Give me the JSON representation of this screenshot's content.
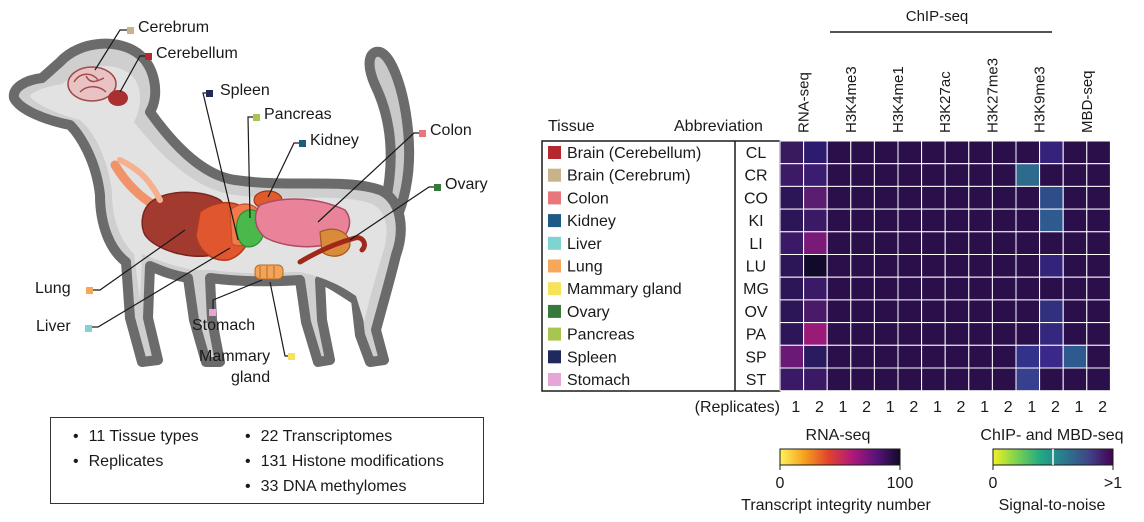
{
  "organ_labels": [
    {
      "key": "cerebrum",
      "text": "Cerebrum",
      "color": "#c8b48a"
    },
    {
      "key": "cerebellum",
      "text": "Cerebellum",
      "color": "#b5282d"
    },
    {
      "key": "spleen",
      "text": "Spleen",
      "color": "#1f2a5c"
    },
    {
      "key": "pancreas",
      "text": "Pancreas",
      "color": "#a8c64f"
    },
    {
      "key": "kidney",
      "text": "Kidney",
      "color": "#1c5b86"
    },
    {
      "key": "colon",
      "text": "Colon",
      "color": "#e9767b"
    },
    {
      "key": "ovary",
      "text": "Ovary",
      "color": "#357a3a"
    },
    {
      "key": "lung",
      "text": "Lung",
      "color": "#f5a85a"
    },
    {
      "key": "liver",
      "text": "Liver",
      "color": "#7fd3d0"
    },
    {
      "key": "stomach",
      "text": "Stomach",
      "color": "#e7a4d8"
    },
    {
      "key": "mammary",
      "text": "Mammary\ngland",
      "color": "#f6e35a"
    }
  ],
  "summary": {
    "left": [
      "11 Tissue types",
      "Replicates"
    ],
    "right": [
      "22 Transcriptomes",
      "131 Histone modifications",
      "33 DNA methylomes"
    ]
  },
  "heatmap": {
    "group_header": "ChIP-seq",
    "col_tissue": "Tissue",
    "col_abbrev": "Abbreviation",
    "assays": [
      "RNA-seq",
      "H3K4me3",
      "H3K4me1",
      "H3K27ac",
      "H3K27me3",
      "H3K9me3",
      "MBD-seq"
    ],
    "replicates_label": "(Replicates)",
    "replicates": [
      "1",
      "2",
      "1",
      "2",
      "1",
      "2",
      "1",
      "2",
      "1",
      "2",
      "1",
      "2",
      "1",
      "2"
    ],
    "rows": [
      {
        "tissue": "Brain (Cerebellum)",
        "abbr": "CL",
        "color": "#b5282d"
      },
      {
        "tissue": "Brain (Cerebrum)",
        "abbr": "CR",
        "color": "#c8b48a"
      },
      {
        "tissue": "Colon",
        "abbr": "CO",
        "color": "#e9767b"
      },
      {
        "tissue": "Kidney",
        "abbr": "KI",
        "color": "#1c5b86"
      },
      {
        "tissue": "Liver",
        "abbr": "LI",
        "color": "#7fd3d0"
      },
      {
        "tissue": "Lung",
        "abbr": "LU",
        "color": "#f5a85a"
      },
      {
        "tissue": "Mammary gland",
        "abbr": "MG",
        "color": "#f6e35a"
      },
      {
        "tissue": "Ovary",
        "abbr": "OV",
        "color": "#357a3a"
      },
      {
        "tissue": "Pancreas",
        "abbr": "PA",
        "color": "#a8c64f"
      },
      {
        "tissue": "Spleen",
        "abbr": "SP",
        "color": "#1f2a5c"
      },
      {
        "tissue": "Stomach",
        "abbr": "ST",
        "color": "#e7a4d8"
      }
    ],
    "cell_colors": [
      [
        "#3a1a5e",
        "#2c1b6e",
        "#2a0f4a",
        "#2a0f4a",
        "#2a0f4a",
        "#2a0f4a",
        "#2a0f4a",
        "#2a0f4a",
        "#2a0f4a",
        "#2a0f4a",
        "#2a0f4a",
        "#35227a",
        "#2a0f4a",
        "#2a0f4a"
      ],
      [
        "#3d1a66",
        "#3a1c70",
        "#2a0f4a",
        "#2a0f4a",
        "#2a0f4a",
        "#2a0f4a",
        "#2a0f4a",
        "#2a0f4a",
        "#2a0f4a",
        "#2a0f4a",
        "#2e6a8e",
        "#2a0f4a",
        "#2a0f4a",
        "#2a0f4a"
      ],
      [
        "#2c1658",
        "#5a1d72",
        "#2a0f4a",
        "#2a0f4a",
        "#2a0f4a",
        "#2a0f4a",
        "#2a0f4a",
        "#2a0f4a",
        "#2a0f4a",
        "#2a0f4a",
        "#2a0f4a",
        "#2e4e8a",
        "#2a0f4a",
        "#2a0f4a"
      ],
      [
        "#2c1658",
        "#3a1a66",
        "#2a0f4a",
        "#2a0f4a",
        "#2a0f4a",
        "#2a0f4a",
        "#2a0f4a",
        "#2a0f4a",
        "#2a0f4a",
        "#2a0f4a",
        "#2a0f4a",
        "#2e5a90",
        "#2a0f4a",
        "#2a0f4a"
      ],
      [
        "#3a1a66",
        "#7a1a78",
        "#2a0f4a",
        "#2a0f4a",
        "#2a0f4a",
        "#2a0f4a",
        "#2a0f4a",
        "#2a0f4a",
        "#2a0f4a",
        "#2a0f4a",
        "#2a0f4a",
        "#2a0f4a",
        "#2a0f4a",
        "#2a0f4a"
      ],
      [
        "#2c1658",
        "#120a2a",
        "#2a0f4a",
        "#2a0f4a",
        "#2a0f4a",
        "#2a0f4a",
        "#2a0f4a",
        "#2a0f4a",
        "#2a0f4a",
        "#2a0f4a",
        "#2a0f4a",
        "#33237a",
        "#2a0f4a",
        "#2a0f4a"
      ],
      [
        "#2c1658",
        "#3a1a66",
        "#2a0f4a",
        "#2a0f4a",
        "#2a0f4a",
        "#2a0f4a",
        "#2a0f4a",
        "#2a0f4a",
        "#2a0f4a",
        "#2a0f4a",
        "#2a0f4a",
        "#2a0f4a",
        "#2a0f4a",
        "#2a0f4a"
      ],
      [
        "#2c1658",
        "#4a1a6a",
        "#2a0f4a",
        "#2a0f4a",
        "#2a0f4a",
        "#2a0f4a",
        "#2a0f4a",
        "#2a0f4a",
        "#2a0f4a",
        "#2a0f4a",
        "#2a0f4a",
        "#30307e",
        "#2a0f4a",
        "#2a0f4a"
      ],
      [
        "#2c1658",
        "#9a1a78",
        "#2a0f4a",
        "#2a0f4a",
        "#2a0f4a",
        "#2a0f4a",
        "#2a0f4a",
        "#2a0f4a",
        "#2a0f4a",
        "#2a0f4a",
        "#2a0f4a",
        "#33287e",
        "#2a0f4a",
        "#2a0f4a"
      ],
      [
        "#6a1a76",
        "#2a1a5e",
        "#2a0f4a",
        "#2a0f4a",
        "#2a0f4a",
        "#2a0f4a",
        "#2a0f4a",
        "#2a0f4a",
        "#2a0f4a",
        "#2a0f4a",
        "#33328a",
        "#3a288a",
        "#2e5a90",
        "#2a0f4a"
      ],
      [
        "#3a1a66",
        "#3a1a66",
        "#2a0f4a",
        "#2a0f4a",
        "#2a0f4a",
        "#2a0f4a",
        "#2a0f4a",
        "#2a0f4a",
        "#2a0f4a",
        "#2a0f4a",
        "#36408e",
        "#2a0f4a",
        "#2a0f4a",
        "#2a0f4a"
      ]
    ]
  },
  "legend_rna": {
    "title": "RNA-seq",
    "min": "0",
    "max": "100",
    "caption": "Transcript integrity number",
    "gradient": [
      "#fff25c",
      "#f6a21f",
      "#e2442a",
      "#b0197a",
      "#5a137a",
      "#120a2a"
    ]
  },
  "legend_chip": {
    "title": "ChIP- and MBD-seq",
    "min": "0",
    "max": ">1",
    "caption": "Signal-to-noise",
    "gradient": [
      "#f1f221",
      "#79d152",
      "#22a884",
      "#2a788e",
      "#414487",
      "#440154"
    ]
  }
}
